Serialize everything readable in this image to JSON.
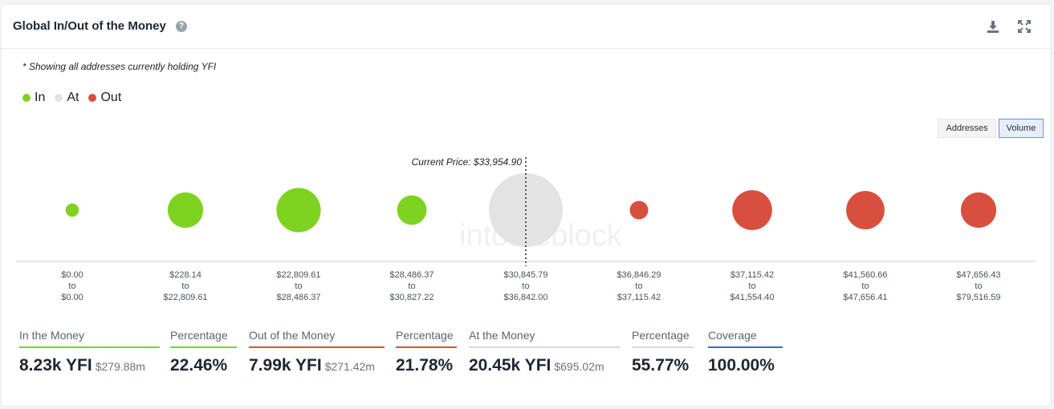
{
  "header": {
    "title": "Global In/Out of the Money"
  },
  "note": "* Showing all addresses currently holding YFI",
  "legend": [
    {
      "label": "In",
      "color": "#7ed321"
    },
    {
      "label": "At",
      "color": "#e3e3e3"
    },
    {
      "label": "Out",
      "color": "#d94f3d"
    }
  ],
  "toggle": {
    "addresses": "Addresses",
    "volume": "Volume",
    "selected": "Volume"
  },
  "chart_data": {
    "type": "bubble",
    "current_price_label": "Current Price: $33,954.90",
    "bubbles": [
      {
        "from": "$0.00",
        "to_word": "to",
        "to": "$0.00",
        "status": "In",
        "size": 0.18
      },
      {
        "from": "$228.14",
        "to_word": "to",
        "to": "$22,809.61",
        "status": "In",
        "size": 0.48
      },
      {
        "from": "$22,809.61",
        "to_word": "to",
        "to": "$28,486.37",
        "status": "In",
        "size": 0.6
      },
      {
        "from": "$28,486.37",
        "to_word": "to",
        "to": "$30,827.22",
        "status": "In",
        "size": 0.4
      },
      {
        "from": "$30,845.79",
        "to_word": "to",
        "to": "$36,842.00",
        "status": "At",
        "size": 1.0
      },
      {
        "from": "$36,846.29",
        "to_word": "to",
        "to": "$37,115.42",
        "status": "Out",
        "size": 0.25
      },
      {
        "from": "$37,115.42",
        "to_word": "to",
        "to": "$41,554.40",
        "status": "Out",
        "size": 0.54
      },
      {
        "from": "$41,560.66",
        "to_word": "to",
        "to": "$47,656.41",
        "status": "Out",
        "size": 0.52
      },
      {
        "from": "$47,656.43",
        "to_word": "to",
        "to": "$79,516.59",
        "status": "Out",
        "size": 0.48
      }
    ]
  },
  "stats": [
    {
      "label": "In the Money",
      "value": "8.23k YFI",
      "sub": "$279.88m",
      "color": "#7ed321"
    },
    {
      "label": "Percentage",
      "value": "22.46%",
      "sub": "",
      "color": "#7ed321"
    },
    {
      "label": "Out of the Money",
      "value": "7.99k YFI",
      "sub": "$271.42m",
      "color": "#d94f3d"
    },
    {
      "label": "Percentage",
      "value": "21.78%",
      "sub": "",
      "color": "#d94f3d"
    },
    {
      "label": "At the Money",
      "value": "20.45k YFI",
      "sub": "$695.02m",
      "color": "#d5d8dc"
    },
    {
      "label": "Percentage",
      "value": "55.77%",
      "sub": "",
      "color": "#d5d8dc"
    },
    {
      "label": "Coverage",
      "value": "100.00%",
      "sub": "",
      "color": "#2f6fc4"
    }
  ]
}
